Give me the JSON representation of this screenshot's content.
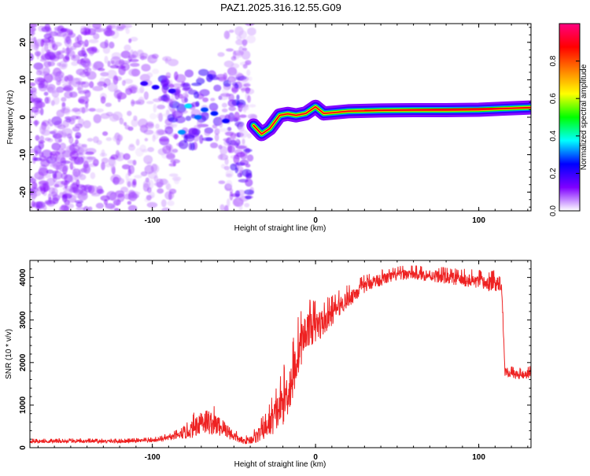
{
  "title": "PAZ1.2025.316.12.55.G09",
  "chart_data": [
    {
      "type": "heatmap",
      "title": "PAZ1.2025.316.12.55.G09",
      "xlabel": "Height of straight line (km)",
      "ylabel": "Frequency (Hz)",
      "xlim": [
        -175,
        132
      ],
      "ylim": [
        -25,
        25
      ],
      "x_ticks": [
        -100,
        0,
        100
      ],
      "x_tick_labels": [
        "-100",
        "0",
        "100"
      ],
      "y_ticks": [
        -20,
        -10,
        0,
        10,
        20
      ],
      "y_tick_labels": [
        "-20",
        "-10",
        "0",
        "10",
        "20"
      ],
      "colorbar": {
        "label": "Normalized spectral amplitude",
        "range": [
          0,
          1
        ],
        "ticks": [
          0,
          0.2,
          0.4,
          0.6,
          0.8
        ],
        "tick_labels": [
          "0.0",
          "0.2",
          "0.4",
          "0.6",
          "0.8"
        ],
        "colors": [
          "#ffffff",
          "#7f00ff",
          "#0000ff",
          "#00ffff",
          "#00ff00",
          "#ffff00",
          "#ff8000",
          "#ff0000",
          "#ff0080"
        ]
      },
      "ridge": [
        {
          "x": -38,
          "f": -2.2
        },
        {
          "x": -33,
          "f": -4.5
        },
        {
          "x": -28,
          "f": -3.0
        },
        {
          "x": -22,
          "f": 0.5
        },
        {
          "x": -17,
          "f": 0.9
        },
        {
          "x": -12,
          "f": 0.5
        },
        {
          "x": -6,
          "f": 1.0
        },
        {
          "x": 0,
          "f": 2.8
        },
        {
          "x": 5,
          "f": 1.0
        },
        {
          "x": 10,
          "f": 1.2
        },
        {
          "x": 20,
          "f": 1.6
        },
        {
          "x": 40,
          "f": 1.8
        },
        {
          "x": 60,
          "f": 1.9
        },
        {
          "x": 80,
          "f": 1.9
        },
        {
          "x": 100,
          "f": 2.0
        },
        {
          "x": 120,
          "f": 2.4
        },
        {
          "x": 132,
          "f": 2.6
        }
      ]
    },
    {
      "type": "line",
      "xlabel": "Height of straight line (km)",
      "ylabel": "SNR (10 * v/v)",
      "xlim": [
        -175,
        132
      ],
      "ylim": [
        0,
        4400
      ],
      "x_ticks": [
        -100,
        0,
        100
      ],
      "x_tick_labels": [
        "-100",
        "0",
        "100"
      ],
      "y_ticks": [
        0,
        1000,
        2000,
        3000,
        4000
      ],
      "y_tick_labels": [
        "0",
        "1000",
        "2000",
        "3000",
        "4000"
      ],
      "line_color": "#ee2222",
      "series": [
        {
          "name": "SNR",
          "x": [
            -175,
            -150,
            -120,
            -100,
            -90,
            -80,
            -75,
            -70,
            -65,
            -60,
            -55,
            -50,
            -45,
            -40,
            -35,
            -30,
            -25,
            -20,
            -15,
            -10,
            -5,
            0,
            5,
            10,
            15,
            20,
            25,
            30,
            35,
            40,
            45,
            50,
            55,
            60,
            70,
            80,
            90,
            100,
            105,
            110,
            114,
            116,
            120,
            125,
            132
          ],
          "values": [
            150,
            150,
            150,
            170,
            230,
            330,
            450,
            650,
            600,
            520,
            430,
            270,
            150,
            180,
            300,
            480,
            750,
            1050,
            1500,
            2350,
            2800,
            2850,
            2950,
            3150,
            3350,
            3500,
            3650,
            3800,
            3900,
            3950,
            4000,
            4050,
            4080,
            4080,
            4050,
            4000,
            3950,
            3900,
            3850,
            3870,
            3880,
            1800,
            1750,
            1700,
            1750
          ],
          "noise": [
            40,
            40,
            40,
            45,
            60,
            120,
            220,
            330,
            300,
            250,
            200,
            120,
            60,
            100,
            180,
            260,
            420,
            520,
            600,
            550,
            420,
            420,
            330,
            280,
            230,
            210,
            190,
            170,
            160,
            150,
            140,
            130,
            130,
            130,
            140,
            150,
            160,
            180,
            190,
            190,
            190,
            120,
            110,
            110,
            110
          ]
        }
      ]
    }
  ]
}
